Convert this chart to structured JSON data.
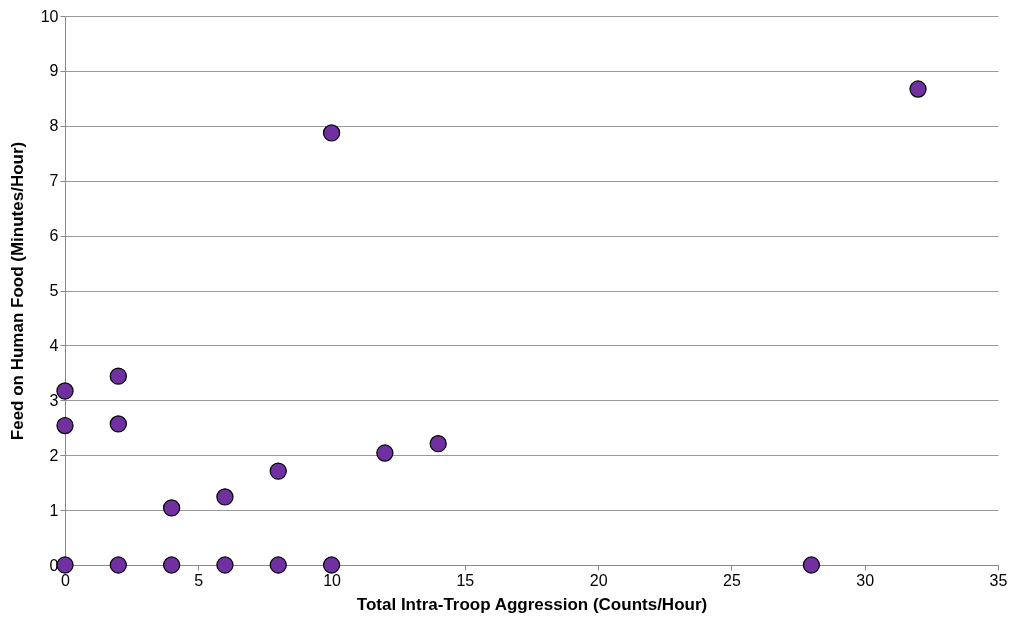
{
  "chart_data": {
    "type": "scatter",
    "xlabel": "Total Intra-Troop Aggression (Counts/Hour)",
    "ylabel": "Feed on Human Food (Minutes/Hour)",
    "x": [
      0,
      0,
      0,
      2,
      2,
      2,
      4,
      4,
      6,
      6,
      8,
      8,
      10,
      10,
      12,
      14,
      28,
      32
    ],
    "series": [
      {
        "color": "#7030a0",
        "values": [
          3.17,
          2.54,
          0,
          3.44,
          2.57,
          0,
          1.04,
          0,
          1.24,
          0,
          1.71,
          0,
          7.87,
          0,
          2.04,
          2.21,
          0,
          8.67
        ]
      }
    ],
    "xlim": [
      0,
      35
    ],
    "xticks": [
      0,
      5,
      10,
      15,
      20,
      25,
      30,
      35
    ],
    "ylim": [
      0,
      10
    ],
    "yticks": [
      0,
      1,
      2,
      3,
      4,
      5,
      6,
      7,
      8,
      9,
      10
    ],
    "grid": "y",
    "marker": "circle"
  }
}
